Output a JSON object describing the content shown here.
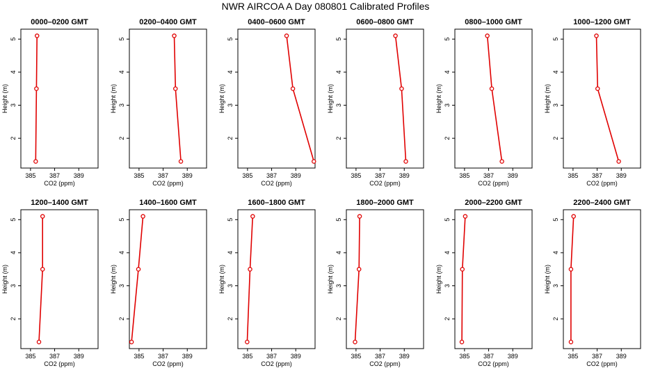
{
  "figure": {
    "title": "NWR AIRCOA A  Day 080801  Calibrated Profiles"
  },
  "style": {
    "line_color": "#e00000",
    "point_color": "#e00000",
    "axis_color": "#000000"
  },
  "chart_data": [
    {
      "type": "line",
      "title": "0000–0200 GMT",
      "xlabel": "CO2 (ppm)",
      "ylabel": "Height (m)",
      "xlim": [
        384.2,
        390.6
      ],
      "ylim": [
        1.1,
        5.3
      ],
      "xticks": [
        "385",
        "387",
        "389"
      ],
      "yticks": [
        "2",
        "3",
        "4",
        "5"
      ],
      "x": [
        385.54,
        385.49,
        385.43
      ],
      "y": [
        5.1,
        3.5,
        1.3
      ]
    },
    {
      "type": "line",
      "title": "0200–0400 GMT",
      "xlabel": "CO2 (ppm)",
      "ylabel": "Height (m)",
      "xlim": [
        384.2,
        390.6
      ],
      "ylim": [
        1.1,
        5.3
      ],
      "xticks": [
        "385",
        "387",
        "389"
      ],
      "yticks": [
        "2",
        "3",
        "4",
        "5"
      ],
      "x": [
        387.92,
        388.02,
        388.47
      ],
      "y": [
        5.1,
        3.5,
        1.3
      ]
    },
    {
      "type": "line",
      "title": "0400–0600 GMT",
      "xlabel": "CO2 (ppm)",
      "ylabel": "Height (m)",
      "xlim": [
        384.2,
        390.6
      ],
      "ylim": [
        1.1,
        5.3
      ],
      "xticks": [
        "385",
        "387",
        "389"
      ],
      "yticks": [
        "2",
        "3",
        "4",
        "5"
      ],
      "x": [
        388.24,
        388.76,
        390.5
      ],
      "y": [
        5.1,
        3.5,
        1.3
      ]
    },
    {
      "type": "line",
      "title": "0600–0800 GMT",
      "xlabel": "CO2 (ppm)",
      "ylabel": "Height (m)",
      "xlim": [
        384.2,
        390.6
      ],
      "ylim": [
        1.1,
        5.3
      ],
      "xticks": [
        "385",
        "387",
        "389"
      ],
      "yticks": [
        "2",
        "3",
        "4",
        "5"
      ],
      "x": [
        388.27,
        388.78,
        389.13
      ],
      "y": [
        5.1,
        3.5,
        1.3
      ]
    },
    {
      "type": "line",
      "title": "0800–1000 GMT",
      "xlabel": "CO2 (ppm)",
      "ylabel": "Height (m)",
      "xlim": [
        384.2,
        390.6
      ],
      "ylim": [
        1.1,
        5.3
      ],
      "xticks": [
        "385",
        "387",
        "389"
      ],
      "yticks": [
        "2",
        "3",
        "4",
        "5"
      ],
      "x": [
        386.89,
        387.26,
        388.1
      ],
      "y": [
        5.1,
        3.5,
        1.3
      ]
    },
    {
      "type": "line",
      "title": "1000–1200 GMT",
      "xlabel": "CO2 (ppm)",
      "ylabel": "Height (m)",
      "xlim": [
        384.2,
        390.6
      ],
      "ylim": [
        1.1,
        5.3
      ],
      "xticks": [
        "385",
        "387",
        "389"
      ],
      "yticks": [
        "2",
        "3",
        "4",
        "5"
      ],
      "x": [
        386.94,
        387.04,
        388.79
      ],
      "y": [
        5.1,
        3.5,
        1.3
      ]
    },
    {
      "type": "line",
      "title": "1200–1400 GMT",
      "xlabel": "CO2 (ppm)",
      "ylabel": "Height (m)",
      "xlim": [
        384.2,
        390.6
      ],
      "ylim": [
        1.1,
        5.3
      ],
      "xticks": [
        "385",
        "387",
        "389"
      ],
      "yticks": [
        "2",
        "3",
        "4",
        "5"
      ],
      "x": [
        386.0,
        386.0,
        385.7
      ],
      "y": [
        5.1,
        3.5,
        1.3
      ]
    },
    {
      "type": "line",
      "title": "1400–1600 GMT",
      "xlabel": "CO2 (ppm)",
      "ylabel": "Height (m)",
      "xlim": [
        384.2,
        390.6
      ],
      "ylim": [
        1.1,
        5.3
      ],
      "xticks": [
        "385",
        "387",
        "389"
      ],
      "yticks": [
        "2",
        "3",
        "4",
        "5"
      ],
      "x": [
        385.33,
        384.95,
        384.38
      ],
      "y": [
        5.1,
        3.5,
        1.3
      ]
    },
    {
      "type": "line",
      "title": "1600–1800 GMT",
      "xlabel": "CO2 (ppm)",
      "ylabel": "Height (m)",
      "xlim": [
        384.2,
        390.6
      ],
      "ylim": [
        1.1,
        5.3
      ],
      "xticks": [
        "385",
        "387",
        "389"
      ],
      "yticks": [
        "2",
        "3",
        "4",
        "5"
      ],
      "x": [
        385.43,
        385.21,
        384.97
      ],
      "y": [
        5.1,
        3.5,
        1.3
      ]
    },
    {
      "type": "line",
      "title": "1800–2000 GMT",
      "xlabel": "CO2 (ppm)",
      "ylabel": "Height (m)",
      "xlim": [
        384.2,
        390.6
      ],
      "ylim": [
        1.1,
        5.3
      ],
      "xticks": [
        "385",
        "387",
        "389"
      ],
      "yticks": [
        "2",
        "3",
        "4",
        "5"
      ],
      "x": [
        385.3,
        385.25,
        384.92
      ],
      "y": [
        5.1,
        3.5,
        1.3
      ]
    },
    {
      "type": "line",
      "title": "2000–2200 GMT",
      "xlabel": "CO2 (ppm)",
      "ylabel": "Height (m)",
      "xlim": [
        384.2,
        390.6
      ],
      "ylim": [
        1.1,
        5.3
      ],
      "xticks": [
        "385",
        "387",
        "389"
      ],
      "yticks": [
        "2",
        "3",
        "4",
        "5"
      ],
      "x": [
        385.06,
        384.82,
        384.78
      ],
      "y": [
        5.1,
        3.5,
        1.3
      ]
    },
    {
      "type": "line",
      "title": "2200–2400 GMT",
      "xlabel": "CO2 (ppm)",
      "ylabel": "Height (m)",
      "xlim": [
        384.2,
        390.6
      ],
      "ylim": [
        1.1,
        5.3
      ],
      "xticks": [
        "385",
        "387",
        "389"
      ],
      "yticks": [
        "2",
        "3",
        "4",
        "5"
      ],
      "x": [
        385.05,
        384.83,
        384.83
      ],
      "y": [
        5.1,
        3.5,
        1.3
      ]
    }
  ]
}
